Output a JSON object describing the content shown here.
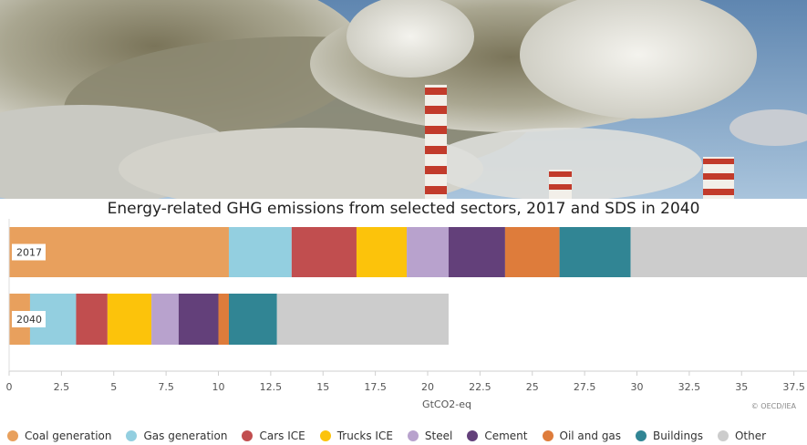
{
  "chart_data": {
    "type": "bar",
    "orientation": "horizontal",
    "stacked": true,
    "title": "Energy-related GHG emissions from selected sectors, 2017 and SDS in 2040",
    "xlabel": "GtCO2-eq",
    "ylabel": "",
    "xlim": [
      0,
      38.5
    ],
    "x_ticks": [
      0,
      2.5,
      5,
      7.5,
      10,
      12.5,
      15,
      17.5,
      20,
      22.5,
      25,
      27.5,
      30,
      32.5,
      35,
      37.5
    ],
    "grid": false,
    "legend_position": "bottom",
    "categories": [
      "2017",
      "2040"
    ],
    "series": [
      {
        "name": "Coal generation",
        "color": "#e8a05d",
        "values": [
          10.5,
          1.0
        ]
      },
      {
        "name": "Gas generation",
        "color": "#93cfe0",
        "values": [
          3.0,
          2.2
        ]
      },
      {
        "name": "Cars ICE",
        "color": "#c14e4f",
        "values": [
          3.1,
          1.5
        ]
      },
      {
        "name": "Trucks ICE",
        "color": "#fcc30b",
        "values": [
          2.4,
          2.1
        ]
      },
      {
        "name": "Steel",
        "color": "#b8a2cd",
        "values": [
          2.0,
          1.3
        ]
      },
      {
        "name": "Cement",
        "color": "#63407a",
        "values": [
          2.7,
          1.9
        ]
      },
      {
        "name": "Oil and gas",
        "color": "#de7c3b",
        "values": [
          2.6,
          0.5
        ]
      },
      {
        "name": "Buildings",
        "color": "#318594",
        "values": [
          3.4,
          2.3
        ]
      },
      {
        "name": "Other",
        "color": "#cccccc",
        "values": [
          8.9,
          8.2
        ]
      }
    ]
  },
  "credit": "© OECD/IEA"
}
